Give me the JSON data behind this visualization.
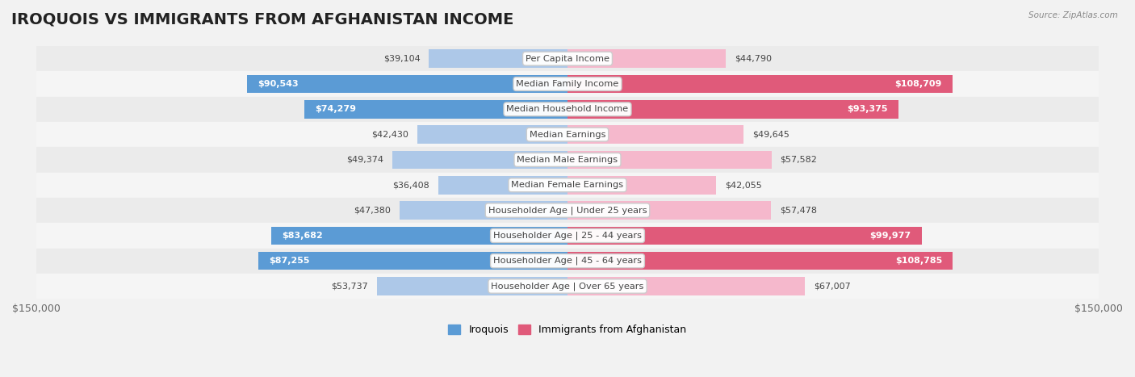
{
  "title": "IROQUOIS VS IMMIGRANTS FROM AFGHANISTAN INCOME",
  "source": "Source: ZipAtlas.com",
  "categories": [
    "Per Capita Income",
    "Median Family Income",
    "Median Household Income",
    "Median Earnings",
    "Median Male Earnings",
    "Median Female Earnings",
    "Householder Age | Under 25 years",
    "Householder Age | 25 - 44 years",
    "Householder Age | 45 - 64 years",
    "Householder Age | Over 65 years"
  ],
  "iroquois_values": [
    39104,
    90543,
    74279,
    42430,
    49374,
    36408,
    47380,
    83682,
    87255,
    53737
  ],
  "afghanistan_values": [
    44790,
    108709,
    93375,
    49645,
    57582,
    42055,
    57478,
    99977,
    108785,
    67007
  ],
  "iroquois_color_light": "#adc8e8",
  "iroquois_color_dark": "#5b9bd5",
  "afghanistan_color_light": "#f5b8cc",
  "afghanistan_color_dark": "#e05a7a",
  "dark_threshold": 70000,
  "bar_height": 0.72,
  "max_value": 150000,
  "bg_color": "#f2f2f2",
  "row_colors": [
    "#ebebeb",
    "#f5f5f5"
  ],
  "title_fontsize": 14,
  "label_fontsize": 8.2,
  "value_fontsize": 8,
  "legend_labels": [
    "Iroquois",
    "Immigrants from Afghanistan"
  ],
  "xlabel_left": "$150,000",
  "xlabel_right": "$150,000"
}
